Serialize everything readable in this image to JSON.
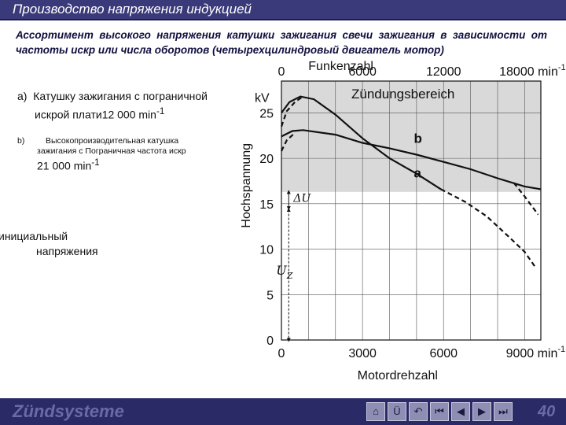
{
  "header": {
    "title": "Производство напряжения индукцией"
  },
  "intro": "Ассортимент высокого напряжения катушки зажигания свечи зажигания в зависимости от частоты искр или числа оборотов (четырехцилиндровый двигатель мотор)",
  "items": {
    "a_label": "a)",
    "a_text_1": "Катушку зажигания с пограничной",
    "a_text_2": "искрой плати12 000 min",
    "a_sup": "-1",
    "b_label": "b)",
    "b_text_1": "Высокопроизводительная катушка",
    "b_text_2": "зажигания с Пограничная частота искр",
    "b_text_3": "21 000 min",
    "b_sup": "-1",
    "reserve_1": "инициальный",
    "reserve_2": "напряжения"
  },
  "chart_data": {
    "type": "line",
    "top_axis": {
      "label": "Funkenzahl",
      "ticks": [
        "0",
        "6000",
        "12000",
        "18000 min"
      ],
      "tick_values": [
        0,
        6000,
        12000,
        18000
      ],
      "unit_sup": "-1"
    },
    "x_axis": {
      "label": "Motordrehzahl",
      "ticks": [
        "0",
        "3000",
        "6000",
        "9000 min"
      ],
      "tick_values": [
        0,
        3000,
        6000,
        9000
      ],
      "unit_sup": "-1",
      "range": [
        0,
        9600
      ]
    },
    "y_axis": {
      "label": "Hochspannung",
      "unit": "kV",
      "ticks": [
        "0",
        "5",
        "10",
        "15",
        "20",
        "25"
      ],
      "tick_values": [
        0,
        5,
        10,
        15,
        20,
        25
      ],
      "range": [
        0,
        28.5
      ]
    },
    "region": {
      "label": "Zündungsbereich",
      "from_kv": 16.3,
      "to_kv": 28.5
    },
    "uz_label": "U",
    "uz_sub": "Z",
    "delta_label": "ΔU",
    "delta_at_rpm": 270,
    "delta_top_kv": 16.3,
    "uz_bottom_kv": 0,
    "reserve_kv": 14.5,
    "series": [
      {
        "name": "a",
        "solid": [
          [
            0,
            25
          ],
          [
            300,
            26.2
          ],
          [
            700,
            26.8
          ],
          [
            1200,
            26.5
          ],
          [
            2000,
            24.8
          ],
          [
            3000,
            22.2
          ],
          [
            4000,
            20.0
          ],
          [
            5000,
            18.3
          ],
          [
            5900,
            16.6
          ]
        ],
        "dashed_start": [
          [
            0,
            23.5
          ],
          [
            200,
            25.2
          ],
          [
            500,
            26.2
          ],
          [
            800,
            26.8
          ]
        ],
        "dashed_end": [
          [
            5900,
            16.6
          ],
          [
            6800,
            15.2
          ],
          [
            7600,
            13.6
          ],
          [
            8400,
            11.4
          ],
          [
            9000,
            9.7
          ],
          [
            9400,
            8.0
          ]
        ]
      },
      {
        "name": "b",
        "solid": [
          [
            0,
            22.4
          ],
          [
            400,
            23.0
          ],
          [
            800,
            23.1
          ],
          [
            2000,
            22.6
          ],
          [
            3000,
            21.7
          ],
          [
            4000,
            21.1
          ],
          [
            5000,
            20.4
          ],
          [
            6000,
            19.6
          ],
          [
            7000,
            18.8
          ],
          [
            8000,
            17.8
          ],
          [
            9000,
            16.9
          ],
          [
            9600,
            16.6
          ]
        ],
        "dashed_start": [
          [
            0,
            20.8
          ],
          [
            200,
            22.0
          ],
          [
            500,
            22.8
          ]
        ],
        "dashed_end": [
          [
            8600,
            17.3
          ],
          [
            9000,
            15.8
          ],
          [
            9500,
            13.8
          ]
        ]
      }
    ]
  },
  "footer": {
    "brand": "Zündsysteme",
    "page": "40",
    "nav_index_label": "Ü"
  },
  "colors": {
    "title_bar": "#3a3a7a",
    "region": "#d9d9d9",
    "footer": "#2a2a66"
  }
}
